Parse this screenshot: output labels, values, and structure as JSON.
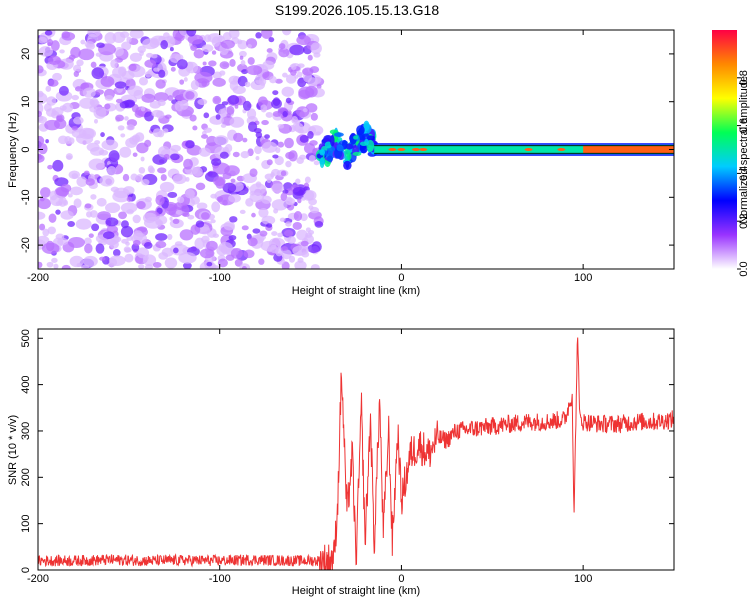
{
  "title": "S199.2026.105.15.13.G18",
  "chart_data": [
    {
      "type": "heatmap",
      "xlabel": "Height of straight line (km)",
      "ylabel": "Frequency (Hz)",
      "xlim": [
        -200,
        150
      ],
      "ylim": [
        -25,
        25
      ],
      "xticks": [
        -200,
        -100,
        0,
        100
      ],
      "yticks": [
        -20,
        -10,
        0,
        10,
        20
      ],
      "colorbar": {
        "label": "Normalized spectral amplitude",
        "range": [
          0,
          1
        ],
        "ticks": [
          "0.0",
          "0.2",
          "0.4",
          "0.6",
          "0.8"
        ],
        "colors": [
          "#ffffff",
          "#9933ff",
          "#0000ff",
          "#00ccff",
          "#00ff55",
          "#ffff00",
          "#ff8800",
          "#ff0044"
        ]
      },
      "regions": [
        {
          "name": "noise",
          "x_range": [
            -200,
            -45
          ],
          "freq_range": [
            -25,
            25
          ],
          "amplitude": 0.1
        },
        {
          "name": "transition",
          "x_range": [
            -45,
            -15
          ],
          "freq_range": [
            -8,
            5
          ],
          "amplitude": 0.35
        },
        {
          "name": "signal",
          "x_range": [
            -15,
            150
          ],
          "freq_center": 0,
          "freq_halfwidth": 1,
          "amplitude": 0.5
        },
        {
          "name": "signal-peak",
          "x_range": [
            100,
            150
          ],
          "freq_center": 0,
          "freq_halfwidth": 0.8,
          "amplitude": 0.9
        }
      ],
      "series": [
        {
          "x": [
            -50,
            -45,
            -40,
            -37,
            -33,
            -30,
            -27,
            -24,
            -20,
            -17,
            -14,
            -10,
            -5,
            0,
            10,
            30,
            60,
            90,
            100,
            120,
            150
          ],
          "y": [
            -4,
            -2,
            0,
            2,
            0,
            -2,
            0,
            1,
            3,
            2,
            0,
            0,
            0,
            0,
            0,
            0,
            0,
            0,
            0,
            0,
            0
          ]
        }
      ]
    },
    {
      "type": "line",
      "xlabel": "Height of straight line (km)",
      "ylabel": "SNR (10 * v/v)",
      "xlim": [
        -200,
        150
      ],
      "ylim": [
        0,
        520
      ],
      "xticks": [
        -200,
        -100,
        0,
        100
      ],
      "yticks": [
        0,
        100,
        200,
        300,
        400,
        500
      ],
      "color": "#ee3333",
      "series": [
        {
          "x": [
            -200,
            -180,
            -160,
            -140,
            -120,
            -100,
            -80,
            -60,
            -50,
            -40,
            -37,
            -35,
            -33,
            -30,
            -27,
            -25,
            -22,
            -20,
            -17,
            -15,
            -12,
            -10,
            -7,
            -5,
            -2,
            0,
            5,
            10,
            15,
            20,
            25,
            30,
            40,
            50,
            60,
            70,
            80,
            90,
            94,
            95,
            96,
            97,
            98,
            100,
            110,
            120,
            130,
            140,
            150
          ],
          "y": [
            20,
            20,
            22,
            20,
            21,
            20,
            22,
            20,
            20,
            20,
            30,
            150,
            430,
            120,
            250,
            20,
            350,
            60,
            330,
            50,
            370,
            80,
            300,
            60,
            300,
            150,
            250,
            270,
            250,
            285,
            280,
            300,
            305,
            310,
            315,
            320,
            320,
            325,
            380,
            110,
            330,
            520,
            330,
            320,
            315,
            315,
            320,
            320,
            325
          ]
        }
      ]
    }
  ]
}
